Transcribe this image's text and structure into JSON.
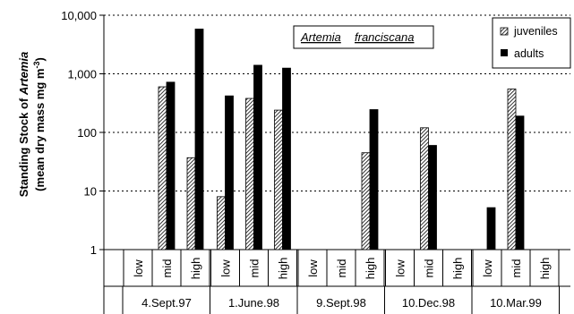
{
  "chart_data": {
    "type": "bar",
    "yscale": "log",
    "ylim": [
      1,
      10000
    ],
    "yticks": [
      "1",
      "10",
      "100",
      "1,000",
      "10,000"
    ],
    "ylabel_line1": "Standing Stock of ",
    "ylabel_line1_italic": "Artemia",
    "ylabel_line2": "(mean dry mass  mg m",
    "ylabel_line2_sup": "-3",
    "ylabel_line2_end": ")",
    "grid": true,
    "legend_position": "top-right",
    "annotation_word1": "Artemia",
    "annotation_word2": "franciscana",
    "levels": [
      "low",
      "mid",
      "high"
    ],
    "dates": [
      "4.Sept.97",
      "1.June.98",
      "9.Sept.98",
      "10.Dec.98",
      "10.Mar.99"
    ],
    "series": [
      {
        "name": "juveniles",
        "pattern": "hatched",
        "values": [
          [
            null,
            600,
            37
          ],
          [
            8,
            380,
            240
          ],
          [
            null,
            null,
            45
          ],
          [
            null,
            120,
            null
          ],
          [
            null,
            550,
            null
          ]
        ]
      },
      {
        "name": "adults",
        "pattern": "solid",
        "values": [
          [
            null,
            720,
            5800
          ],
          [
            420,
            1400,
            1250
          ],
          [
            null,
            null,
            245
          ],
          [
            null,
            60,
            null
          ],
          [
            5.2,
            190,
            null
          ]
        ]
      }
    ]
  }
}
